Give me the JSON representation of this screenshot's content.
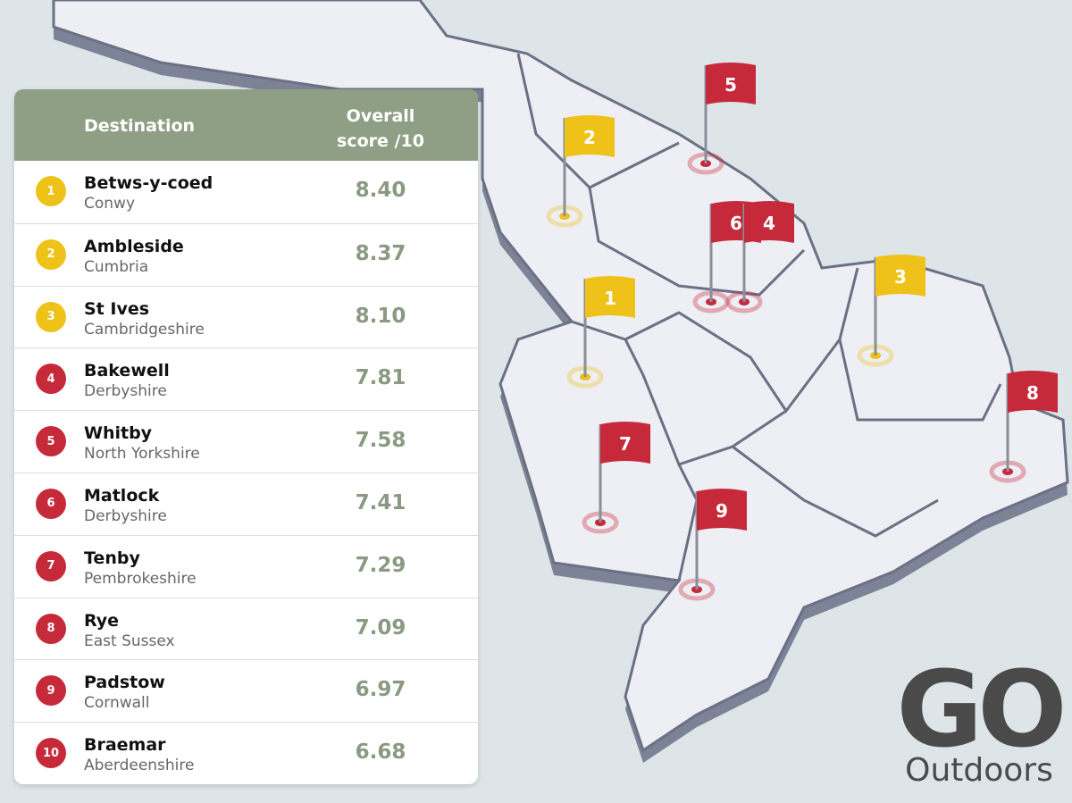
{
  "table": {
    "header": [
      "Destination",
      "Overall score /10"
    ],
    "rows": [
      [
        "1",
        "Betws-y-coed",
        "Conwy",
        "8.40"
      ],
      [
        "2",
        "Ambleside",
        "Cumbria",
        "8.37"
      ],
      [
        "3",
        "St Ives",
        "Cambridgeshire",
        "8.10"
      ],
      [
        "4",
        "Bakewell",
        "Derbyshire",
        "7.81"
      ],
      [
        "5",
        "Whitby",
        "North Yorkshire",
        "7.58"
      ],
      [
        "6",
        "Matlock",
        "Derbyshire",
        "7.41"
      ],
      [
        "7",
        "Tenby",
        "Pembrokeshire",
        "7.29"
      ],
      [
        "8",
        "Rye",
        "East Sussex",
        "7.09"
      ],
      [
        "9",
        "Padstow",
        "Cornwall",
        "6.97"
      ],
      [
        "10",
        "Braemar",
        "Aberdeenshire",
        "6.68"
      ]
    ]
  },
  "map": {
    "flags": [
      {
        "label": "5"
      },
      {
        "label": "2"
      },
      {
        "label": "6"
      },
      {
        "label": "4"
      },
      {
        "label": "3"
      },
      {
        "label": "1"
      },
      {
        "label": "8"
      },
      {
        "label": "7"
      },
      {
        "label": "9"
      }
    ]
  },
  "logo": {
    "brand": "GO",
    "sub": "Outdoors"
  }
}
